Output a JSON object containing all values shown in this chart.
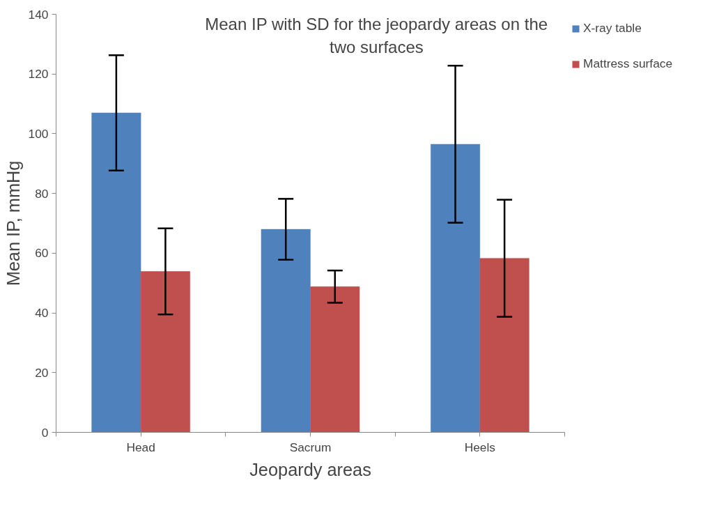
{
  "chart_data": {
    "type": "bar",
    "title": "Mean IP with SD for the jeopardy areas on the two surfaces",
    "xlabel": "Jeopardy areas",
    "ylabel": "Mean IP, mmHg",
    "categories": [
      "Head",
      "Sacrum",
      "Heels"
    ],
    "series": [
      {
        "name": "X-ray table",
        "color": "#4f81bd",
        "values": [
          107.0,
          68.0,
          96.5
        ],
        "errors": [
          19.3,
          10.2,
          26.3
        ]
      },
      {
        "name": "Mattress surface",
        "color": "#c0504d",
        "values": [
          53.9,
          48.8,
          58.3
        ],
        "errors": [
          14.4,
          5.4,
          19.6
        ]
      }
    ],
    "ylim": [
      0,
      140
    ],
    "yticks": [
      0,
      20,
      40,
      60,
      80,
      100,
      120,
      140
    ],
    "grid": false,
    "legend": "right"
  }
}
